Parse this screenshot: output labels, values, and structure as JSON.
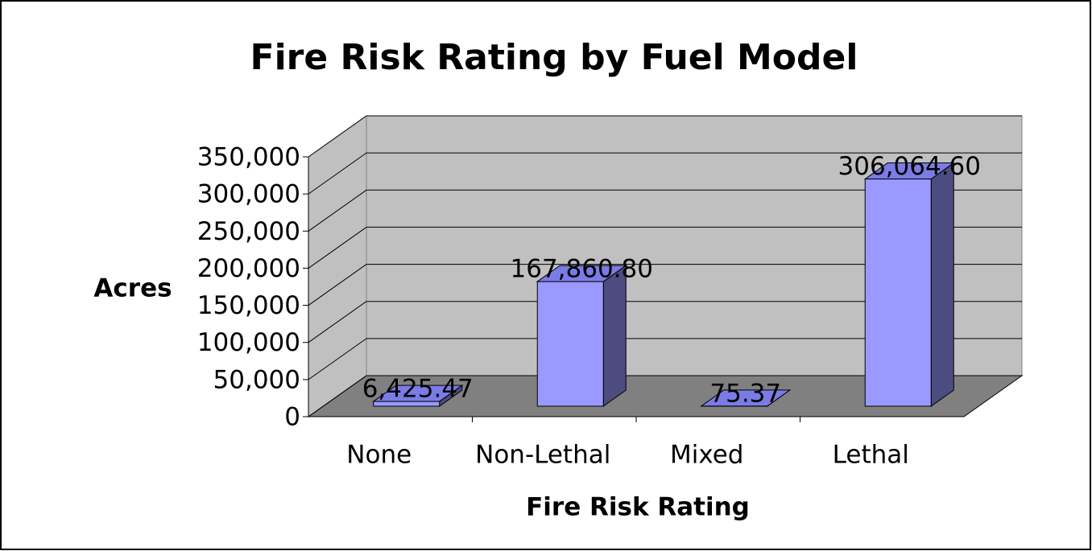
{
  "chart_data": {
    "type": "bar3d",
    "title": "Fire Risk Rating by Fuel Model",
    "x_label": "Fire Risk Rating",
    "y_label": "Acres",
    "categories": [
      "None",
      "Non-Lethal",
      "Mixed",
      "Lethal"
    ],
    "values": [
      6425.47,
      167860.8,
      75.37,
      306064.6
    ],
    "value_labels": [
      "6,425.47",
      "167,860.80",
      "75.37",
      "306,064.60"
    ],
    "color": "#9999ff",
    "ylim": [
      0,
      350000
    ],
    "yticks": [
      0,
      {
        "value": 50000,
        "label": "50,000"
      },
      {
        "value": 100000,
        "label": "100,000"
      },
      {
        "value": 150000,
        "label": "150,000"
      },
      {
        "value": 200000,
        "label": "200,000"
      },
      {
        "value": 250000,
        "label": "250,000"
      },
      {
        "value": 300000,
        "label": "300,000"
      },
      {
        "value": 350000,
        "label": "350,000"
      }
    ],
    "grid": true
  }
}
